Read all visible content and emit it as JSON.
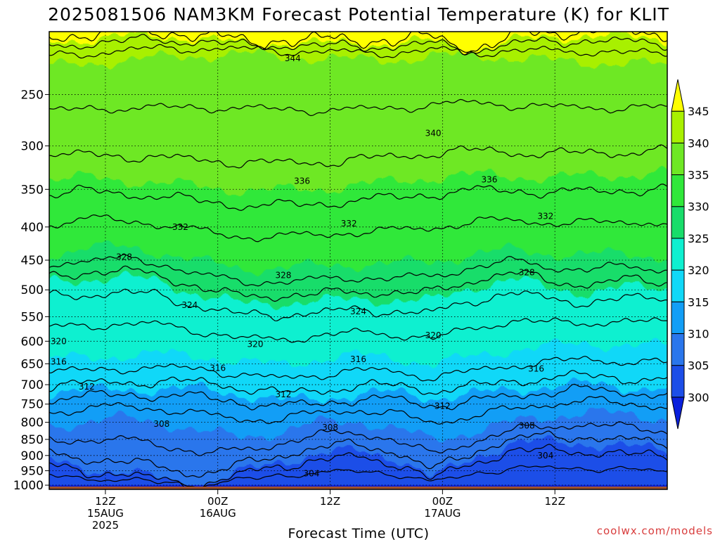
{
  "title": "2025081506 NAM3KM Forecast Potential Temperature (K) for KLIT",
  "credit": "coolwx.com/models",
  "chart_data": {
    "type": "heatmap",
    "title": "2025081506 NAM3KM Forecast Potential Temperature (K) for KLIT",
    "xlabel": "Forecast Time (UTC)",
    "ylabel": "",
    "x_ticks": [
      {
        "lines": [
          "12Z",
          "15AUG",
          "2025"
        ],
        "value": "2025-08-15 12Z"
      },
      {
        "lines": [
          "00Z",
          "16AUG"
        ],
        "value": "2025-08-16 00Z"
      },
      {
        "lines": [
          "12Z"
        ],
        "value": "2025-08-16 12Z"
      },
      {
        "lines": [
          "00Z",
          "17AUG"
        ],
        "value": "2025-08-17 00Z"
      },
      {
        "lines": [
          "12Z"
        ],
        "value": "2025-08-17 12Z"
      }
    ],
    "xlim": [
      "2025-08-15 06Z",
      "2025-08-18 00Z"
    ],
    "y_ticks": [
      "250",
      "300",
      "350",
      "400",
      "450",
      "500",
      "550",
      "600",
      "650",
      "700",
      "750",
      "800",
      "850",
      "900",
      "950",
      "1000"
    ],
    "ylim": [
      1015,
      200
    ],
    "y_scale": "log",
    "grid": "dotted",
    "ground_color": "#a0522d",
    "colorbar": {
      "levels": [
        300,
        305,
        310,
        315,
        320,
        325,
        330,
        335,
        340,
        345
      ],
      "labels": [
        "300",
        "305",
        "310",
        "315",
        "320",
        "325",
        "330",
        "335",
        "340",
        "345"
      ],
      "colors": [
        "#0a20dc",
        "#1c4ee8",
        "#2a76ec",
        "#129ef6",
        "#10d8f8",
        "#0ef0d0",
        "#18dd6a",
        "#30e83a",
        "#6ee824",
        "#a8f000",
        "#ffff00"
      ],
      "extends": "both",
      "position": "right"
    },
    "contour_interval": 2,
    "contour_labels": [
      {
        "value": 344,
        "x": "2025-08-16 08Z",
        "y": 220
      },
      {
        "value": 340,
        "x": "2025-08-16 23Z",
        "y": 287
      },
      {
        "value": 336,
        "x": "2025-08-16 09Z",
        "y": 340
      },
      {
        "value": 336,
        "x": "2025-08-17 05Z",
        "y": 338
      },
      {
        "value": 332,
        "x": "2025-08-15 20Z",
        "y": 400
      },
      {
        "value": 332,
        "x": "2025-08-16 14Z",
        "y": 395
      },
      {
        "value": 332,
        "x": "2025-08-17 11Z",
        "y": 385
      },
      {
        "value": 328,
        "x": "2025-08-15 14Z",
        "y": 445
      },
      {
        "value": 328,
        "x": "2025-08-16 07Z",
        "y": 475
      },
      {
        "value": 328,
        "x": "2025-08-17 09Z",
        "y": 470
      },
      {
        "value": 324,
        "x": "2025-08-15 21Z",
        "y": 528
      },
      {
        "value": 324,
        "x": "2025-08-16 15Z",
        "y": 540
      },
      {
        "value": 320,
        "x": "2025-08-15 07Z",
        "y": 600
      },
      {
        "value": 320,
        "x": "2025-08-16 04Z",
        "y": 606
      },
      {
        "value": 320,
        "x": "2025-08-16 23Z",
        "y": 588
      },
      {
        "value": 316,
        "x": "2025-08-15 07Z",
        "y": 645
      },
      {
        "value": 316,
        "x": "2025-08-16 00Z",
        "y": 660
      },
      {
        "value": 316,
        "x": "2025-08-16 15Z",
        "y": 640
      },
      {
        "value": 316,
        "x": "2025-08-17 10Z",
        "y": 662
      },
      {
        "value": 312,
        "x": "2025-08-15 10Z",
        "y": 705
      },
      {
        "value": 312,
        "x": "2025-08-16 07Z",
        "y": 725
      },
      {
        "value": 312,
        "x": "2025-08-17 00Z",
        "y": 755
      },
      {
        "value": 308,
        "x": "2025-08-15 18Z",
        "y": 805
      },
      {
        "value": 308,
        "x": "2025-08-16 12Z",
        "y": 815
      },
      {
        "value": 308,
        "x": "2025-08-17 09Z",
        "y": 810
      },
      {
        "value": 304,
        "x": "2025-08-17 11Z",
        "y": 900
      },
      {
        "value": 304,
        "x": "2025-08-16 10Z",
        "y": 960
      }
    ]
  }
}
